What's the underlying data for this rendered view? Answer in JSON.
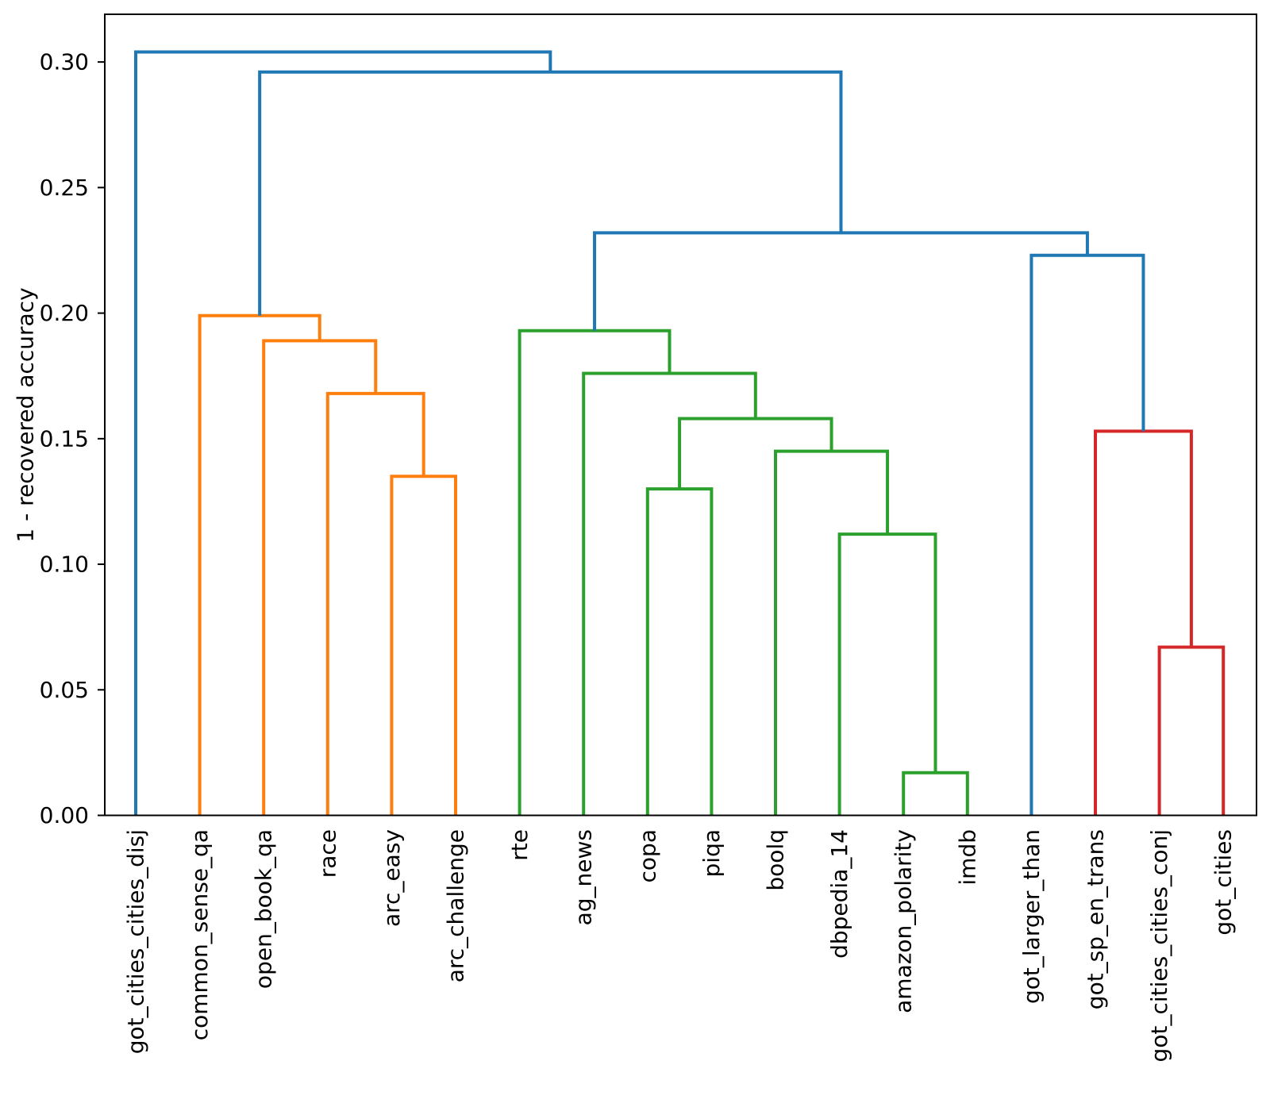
{
  "chart_data": {
    "type": "dendrogram",
    "orientation": "top",
    "title": "",
    "xlabel": "",
    "ylabel": "1 - recovered accuracy",
    "ylim": [
      0,
      0.319
    ],
    "ytick_labels": [
      "0.00",
      "0.05",
      "0.10",
      "0.15",
      "0.20",
      "0.25",
      "0.30"
    ],
    "grid": false,
    "legend": null,
    "link_colors": {
      "blue": "#1f77b4",
      "orange": "#ff7f0e",
      "green": "#2ca02c",
      "red": "#d62728"
    },
    "leaves": [
      "got_cities_cities_disj",
      "common_sense_qa",
      "open_book_qa",
      "race",
      "arc_easy",
      "arc_challenge",
      "rte",
      "ag_news",
      "copa",
      "piqa",
      "boolq",
      "dbpedia_14",
      "amazon_polarity",
      "imdb",
      "got_larger_than",
      "got_sp_en_trans",
      "got_cities_cities_conj",
      "got_cities"
    ],
    "merges": [
      {
        "id": "M1",
        "children": [
          "L4",
          "L5"
        ],
        "height": 0.135,
        "color": "orange"
      },
      {
        "id": "M2",
        "children": [
          "L3",
          "M1"
        ],
        "height": 0.168,
        "color": "orange"
      },
      {
        "id": "M3",
        "children": [
          "L2",
          "M2"
        ],
        "height": 0.189,
        "color": "orange"
      },
      {
        "id": "M4",
        "children": [
          "L1",
          "M3"
        ],
        "height": 0.199,
        "color": "orange"
      },
      {
        "id": "M5",
        "children": [
          "L12",
          "L13"
        ],
        "height": 0.017,
        "color": "green"
      },
      {
        "id": "M6",
        "children": [
          "L11",
          "M5"
        ],
        "height": 0.112,
        "color": "green"
      },
      {
        "id": "M7",
        "children": [
          "L10",
          "M6"
        ],
        "height": 0.145,
        "color": "green"
      },
      {
        "id": "M8",
        "children": [
          "L8",
          "L9"
        ],
        "height": 0.13,
        "color": "green"
      },
      {
        "id": "M9",
        "children": [
          "M8",
          "M7"
        ],
        "height": 0.158,
        "color": "green"
      },
      {
        "id": "M10",
        "children": [
          "L7",
          "M9"
        ],
        "height": 0.176,
        "color": "green"
      },
      {
        "id": "M11",
        "children": [
          "L6",
          "M10"
        ],
        "height": 0.193,
        "color": "green"
      },
      {
        "id": "M12",
        "children": [
          "L16",
          "L17"
        ],
        "height": 0.067,
        "color": "red"
      },
      {
        "id": "M13",
        "children": [
          "L15",
          "M12"
        ],
        "height": 0.153,
        "color": "red"
      },
      {
        "id": "M14",
        "children": [
          "L14",
          "M13"
        ],
        "height": 0.223,
        "color": "blue"
      },
      {
        "id": "M15",
        "children": [
          "M11",
          "M14"
        ],
        "height": 0.232,
        "color": "blue"
      },
      {
        "id": "M16",
        "children": [
          "M4",
          "M15"
        ],
        "height": 0.296,
        "color": "blue"
      },
      {
        "id": "M17",
        "children": [
          "L0",
          "M16"
        ],
        "height": 0.304,
        "color": "blue"
      }
    ]
  }
}
